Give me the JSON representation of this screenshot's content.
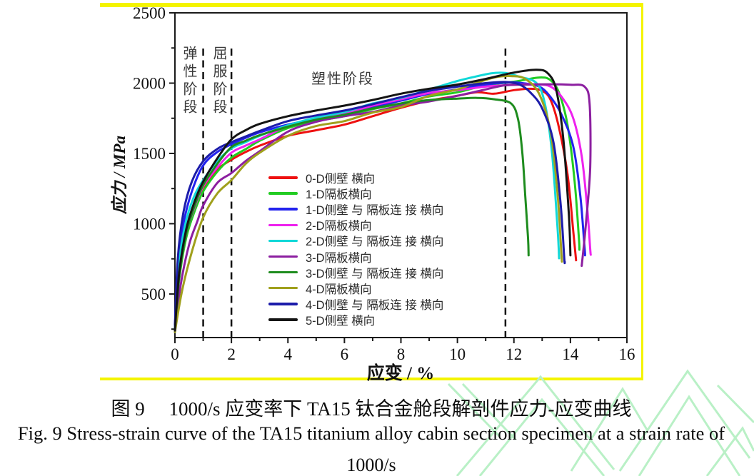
{
  "page": {
    "background": "#ffffff"
  },
  "highlight_box": {
    "color": "#f4f400"
  },
  "watermark": {
    "color": "#b9f0c6"
  },
  "figure": {
    "caption_zh": "图 9　 1000/s 应变率下 TA15 钛合金舱段解剖件应力-应变曲线",
    "caption_en_line1": "Fig. 9 Stress-strain curve of the TA15 titanium alloy cabin section specimen at a strain rate of",
    "caption_en_line2": "1000/s"
  },
  "chart_data": {
    "type": "line",
    "title": "",
    "xlabel": "应变 / %",
    "ylabel": "应力 / MPa",
    "xlim": [
      0,
      16
    ],
    "ylim": [
      190,
      2500
    ],
    "x_ticks": [
      0,
      2,
      4,
      6,
      8,
      10,
      12,
      14,
      16
    ],
    "x_minor_ticks": [
      1,
      3,
      5,
      7,
      9,
      11,
      13,
      15
    ],
    "y_ticks": [
      500,
      1000,
      1500,
      2000,
      2500
    ],
    "y_minor_ticks": [
      250,
      750,
      1250,
      1750,
      2250
    ],
    "grid": false,
    "frame_color": "#1a1a1a",
    "legend_position": "inside center-bottom",
    "stage_dividers_x": [
      1,
      2,
      11.7
    ],
    "stage_labels": [
      {
        "text": "弹性阶段",
        "orientation": "vertical"
      },
      {
        "text": "屈服阶段",
        "orientation": "vertical"
      },
      {
        "text": "塑性阶段",
        "orientation": "horizontal"
      }
    ],
    "series": [
      {
        "name": "0-D侧壁 横向",
        "color": "#ee1111",
        "points": [
          [
            0,
            230
          ],
          [
            0.15,
            640
          ],
          [
            0.4,
            950
          ],
          [
            0.7,
            1130
          ],
          [
            1,
            1255
          ],
          [
            1.5,
            1385
          ],
          [
            2,
            1455
          ],
          [
            2.5,
            1510
          ],
          [
            3,
            1555
          ],
          [
            4,
            1625
          ],
          [
            5,
            1665
          ],
          [
            6,
            1705
          ],
          [
            7,
            1765
          ],
          [
            8,
            1825
          ],
          [
            9,
            1875
          ],
          [
            10,
            1910
          ],
          [
            10.7,
            1935
          ],
          [
            11.3,
            1925
          ],
          [
            12,
            1950
          ],
          [
            12.6,
            1960
          ],
          [
            13,
            1945
          ],
          [
            13.3,
            1880
          ],
          [
            13.6,
            1680
          ],
          [
            13.9,
            1350
          ],
          [
            14.1,
            950
          ],
          [
            14.2,
            740
          ]
        ]
      },
      {
        "name": "1-D隔板横向",
        "color": "#22cc22",
        "points": [
          [
            0,
            230
          ],
          [
            0.15,
            600
          ],
          [
            0.4,
            900
          ],
          [
            0.7,
            1090
          ],
          [
            1,
            1230
          ],
          [
            1.5,
            1370
          ],
          [
            2,
            1470
          ],
          [
            2.5,
            1530
          ],
          [
            3,
            1590
          ],
          [
            4,
            1680
          ],
          [
            5,
            1730
          ],
          [
            6,
            1765
          ],
          [
            7,
            1815
          ],
          [
            8,
            1855
          ],
          [
            9,
            1905
          ],
          [
            10,
            1935
          ],
          [
            11,
            1985
          ],
          [
            12,
            2010
          ],
          [
            12.9,
            2040
          ],
          [
            13.3,
            2020
          ],
          [
            13.6,
            1930
          ],
          [
            13.9,
            1700
          ],
          [
            14.15,
            1300
          ],
          [
            14.3,
            900
          ],
          [
            14.32,
            815
          ]
        ]
      },
      {
        "name": "1-D侧壁 与 隔板连 接 横向",
        "color": "#2222ee",
        "points": [
          [
            0,
            260
          ],
          [
            0.1,
            700
          ],
          [
            0.3,
            1000
          ],
          [
            0.6,
            1230
          ],
          [
            1,
            1415
          ],
          [
            1.5,
            1510
          ],
          [
            2,
            1565
          ],
          [
            2.5,
            1610
          ],
          [
            3,
            1650
          ],
          [
            4,
            1705
          ],
          [
            5,
            1745
          ],
          [
            6,
            1785
          ],
          [
            7,
            1830
          ],
          [
            8,
            1875
          ],
          [
            9,
            1925
          ],
          [
            10,
            1955
          ],
          [
            11,
            1990
          ],
          [
            11.8,
            2005
          ],
          [
            12.3,
            2000
          ],
          [
            12.9,
            1975
          ],
          [
            13.3,
            1900
          ],
          [
            13.7,
            1770
          ],
          [
            14.1,
            1550
          ],
          [
            14.35,
            1200
          ],
          [
            14.5,
            830
          ],
          [
            14.52,
            775
          ]
        ]
      },
      {
        "name": "2-D隔板横向",
        "color": "#ee22ee",
        "points": [
          [
            0,
            230
          ],
          [
            0.15,
            620
          ],
          [
            0.4,
            930
          ],
          [
            0.7,
            1120
          ],
          [
            1,
            1265
          ],
          [
            1.5,
            1400
          ],
          [
            2,
            1505
          ],
          [
            2.5,
            1555
          ],
          [
            3,
            1600
          ],
          [
            4,
            1695
          ],
          [
            5,
            1745
          ],
          [
            6,
            1785
          ],
          [
            7,
            1840
          ],
          [
            8,
            1885
          ],
          [
            9,
            1930
          ],
          [
            10,
            1950
          ],
          [
            11,
            1975
          ],
          [
            12,
            1988
          ],
          [
            12.8,
            1992
          ],
          [
            13.3,
            1975
          ],
          [
            13.7,
            1900
          ],
          [
            14.1,
            1750
          ],
          [
            14.4,
            1480
          ],
          [
            14.6,
            1100
          ],
          [
            14.7,
            820
          ],
          [
            14.72,
            779
          ]
        ]
      },
      {
        "name": "2-D侧壁 与 隔板连 接 横向",
        "color": "#11d8d8",
        "points": [
          [
            0,
            240
          ],
          [
            0.12,
            680
          ],
          [
            0.35,
            980
          ],
          [
            0.65,
            1180
          ],
          [
            1,
            1310
          ],
          [
            1.5,
            1445
          ],
          [
            2,
            1535
          ],
          [
            2.5,
            1580
          ],
          [
            3,
            1625
          ],
          [
            4,
            1700
          ],
          [
            5,
            1755
          ],
          [
            6,
            1795
          ],
          [
            7,
            1855
          ],
          [
            8,
            1895
          ],
          [
            9,
            1955
          ],
          [
            10,
            2015
          ],
          [
            10.5,
            2040
          ],
          [
            11.2,
            2070
          ],
          [
            11.7,
            2072
          ],
          [
            12.2,
            2045
          ],
          [
            12.8,
            2000
          ],
          [
            13.1,
            1850
          ],
          [
            13.35,
            1500
          ],
          [
            13.55,
            950
          ],
          [
            13.6,
            754
          ]
        ]
      },
      {
        "name": "3-D隔板横向",
        "color": "#8c1fa0",
        "points": [
          [
            0,
            230
          ],
          [
            0.2,
            560
          ],
          [
            0.5,
            850
          ],
          [
            0.8,
            1020
          ],
          [
            1,
            1130
          ],
          [
            1.5,
            1290
          ],
          [
            2,
            1360
          ],
          [
            2.5,
            1445
          ],
          [
            3,
            1515
          ],
          [
            4,
            1655
          ],
          [
            5,
            1725
          ],
          [
            6,
            1765
          ],
          [
            7,
            1795
          ],
          [
            8,
            1840
          ],
          [
            9,
            1870
          ],
          [
            10,
            1910
          ],
          [
            11,
            1955
          ],
          [
            11.7,
            1985
          ],
          [
            12.5,
            1990
          ],
          [
            13.3,
            1992
          ],
          [
            14,
            1988
          ],
          [
            14.5,
            1975
          ],
          [
            14.68,
            1850
          ],
          [
            14.7,
            1400
          ],
          [
            14.55,
            1000
          ],
          [
            14.4,
            700
          ]
        ]
      },
      {
        "name": "3-D侧壁 与 隔板连 接 横向",
        "color": "#1e8c1e",
        "points": [
          [
            0,
            230
          ],
          [
            0.15,
            620
          ],
          [
            0.4,
            930
          ],
          [
            0.7,
            1130
          ],
          [
            1,
            1275
          ],
          [
            1.5,
            1425
          ],
          [
            2,
            1545
          ],
          [
            2.5,
            1590
          ],
          [
            3,
            1630
          ],
          [
            4,
            1690
          ],
          [
            5,
            1740
          ],
          [
            6,
            1775
          ],
          [
            7,
            1820
          ],
          [
            8,
            1855
          ],
          [
            9,
            1880
          ],
          [
            10,
            1890
          ],
          [
            10.7,
            1895
          ],
          [
            11.3,
            1885
          ],
          [
            11.9,
            1855
          ],
          [
            12.15,
            1740
          ],
          [
            12.3,
            1500
          ],
          [
            12.4,
            1200
          ],
          [
            12.5,
            900
          ],
          [
            12.52,
            775
          ]
        ]
      },
      {
        "name": "4-D隔板横向",
        "color": "#a0a01c",
        "points": [
          [
            0,
            230
          ],
          [
            0.25,
            520
          ],
          [
            0.6,
            800
          ],
          [
            1,
            1045
          ],
          [
            1.5,
            1215
          ],
          [
            2,
            1310
          ],
          [
            2.5,
            1425
          ],
          [
            3,
            1505
          ],
          [
            4,
            1625
          ],
          [
            5,
            1695
          ],
          [
            6,
            1730
          ],
          [
            7,
            1790
          ],
          [
            8,
            1830
          ],
          [
            9,
            1910
          ],
          [
            10,
            1955
          ],
          [
            10.5,
            1990
          ],
          [
            11.3,
            2040
          ],
          [
            11.9,
            2050
          ],
          [
            12.4,
            2030
          ],
          [
            12.9,
            1920
          ],
          [
            13.3,
            1650
          ],
          [
            13.55,
            1200
          ],
          [
            13.68,
            790
          ],
          [
            13.7,
            730
          ]
        ]
      },
      {
        "name": "4-D侧壁 与 隔板连 接 横向",
        "color": "#1c1caa",
        "points": [
          [
            0,
            280
          ],
          [
            0.1,
            750
          ],
          [
            0.3,
            1080
          ],
          [
            0.6,
            1300
          ],
          [
            1,
            1445
          ],
          [
            1.5,
            1532
          ],
          [
            2,
            1580
          ],
          [
            2.5,
            1620
          ],
          [
            3,
            1660
          ],
          [
            4,
            1730
          ],
          [
            5,
            1770
          ],
          [
            6,
            1805
          ],
          [
            7,
            1850
          ],
          [
            8,
            1900
          ],
          [
            9,
            1945
          ],
          [
            10,
            1975
          ],
          [
            11,
            2000
          ],
          [
            11.7,
            2008
          ],
          [
            12.2,
            1990
          ],
          [
            12.6,
            1930
          ],
          [
            13,
            1820
          ],
          [
            13.4,
            1580
          ],
          [
            13.65,
            1150
          ],
          [
            13.78,
            760
          ],
          [
            13.8,
            728
          ]
        ]
      },
      {
        "name": "5-D侧壁 横向",
        "color": "#141414",
        "points": [
          [
            0,
            240
          ],
          [
            0.15,
            650
          ],
          [
            0.4,
            960
          ],
          [
            0.7,
            1160
          ],
          [
            1,
            1300
          ],
          [
            1.5,
            1465
          ],
          [
            2,
            1600
          ],
          [
            2.5,
            1665
          ],
          [
            3,
            1710
          ],
          [
            4,
            1765
          ],
          [
            5,
            1805
          ],
          [
            6,
            1840
          ],
          [
            7,
            1880
          ],
          [
            8,
            1925
          ],
          [
            9,
            1960
          ],
          [
            10,
            1990
          ],
          [
            11,
            2030
          ],
          [
            12,
            2075
          ],
          [
            12.8,
            2095
          ],
          [
            13.2,
            2070
          ],
          [
            13.5,
            1950
          ],
          [
            13.75,
            1600
          ],
          [
            13.95,
            1050
          ],
          [
            14,
            775
          ]
        ]
      }
    ]
  }
}
